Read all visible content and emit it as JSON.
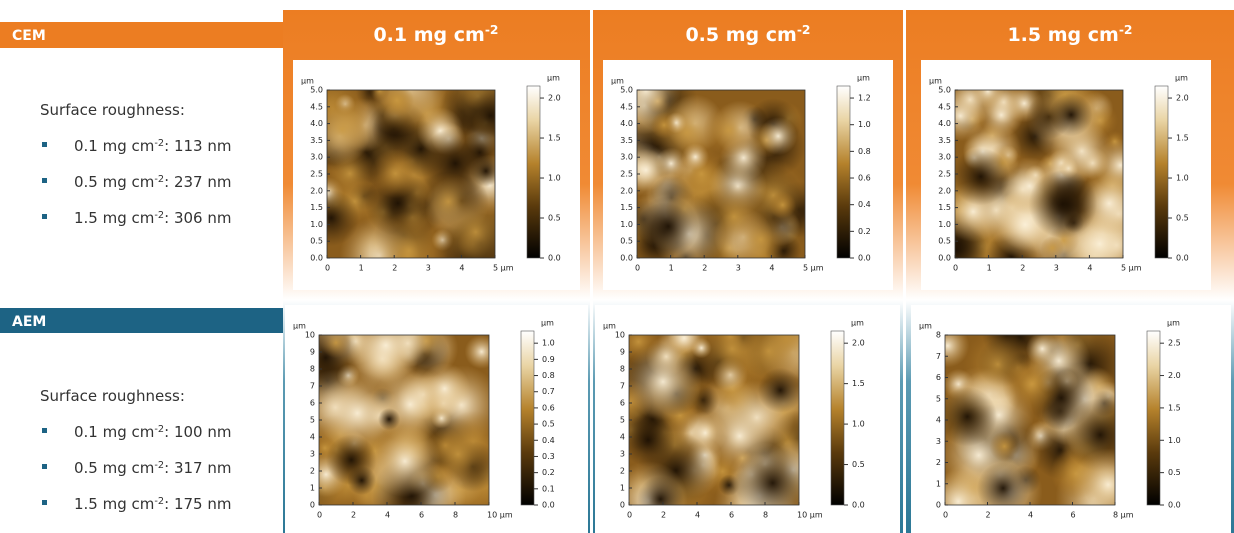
{
  "columns": [
    {
      "text": "0.1 mg cm",
      "sup": "-2"
    },
    {
      "text": "0.5 mg cm",
      "sup": "-2"
    },
    {
      "text": "1.5 mg cm",
      "sup": "-2"
    }
  ],
  "sections": [
    {
      "label": "CEM",
      "heading": "Surface roughness:",
      "items": [
        {
          "prefix": "0.1 mg cm",
          "sup": "-2",
          "suffix": ": 113 nm"
        },
        {
          "prefix": "0.5 mg cm",
          "sup": "-2",
          "suffix": ": 237 nm"
        },
        {
          "prefix": "1.5 mg cm",
          "sup": "-2",
          "suffix": ": 306 nm"
        }
      ]
    },
    {
      "label": "AEM",
      "heading": "Surface roughness:",
      "items": [
        {
          "prefix": "0.1 mg cm",
          "sup": "-2",
          "suffix": ": 100 nm"
        },
        {
          "prefix": "0.5 mg cm",
          "sup": "-2",
          "suffix": ": 317 nm"
        },
        {
          "prefix": "1.5 mg cm",
          "sup": "-2",
          "suffix": ": 175 nm"
        }
      ]
    }
  ],
  "panels": [
    [
      {
        "y_unit": "µm",
        "yticks": [
          "0.0",
          "0.5",
          "1.0",
          "1.5",
          "2.0",
          "2.5",
          "3.0",
          "3.5",
          "4.0",
          "4.5",
          "5.0"
        ],
        "xticks": [
          "0",
          "1",
          "2",
          "3",
          "4",
          "5 µm"
        ],
        "cbar_unit": "µm",
        "cbar_ticks": [
          "0.0",
          "0.5",
          "1.0",
          "1.5",
          "2.0"
        ]
      },
      {
        "y_unit": "µm",
        "yticks": [
          "0.0",
          "0.5",
          "1.0",
          "1.5",
          "2.0",
          "2.5",
          "3.0",
          "3.5",
          "4.0",
          "4.5",
          "5.0"
        ],
        "xticks": [
          "0",
          "1",
          "2",
          "3",
          "4",
          "5 µm"
        ],
        "cbar_unit": "µm",
        "cbar_ticks": [
          "0.0",
          "0.2",
          "0.4",
          "0.6",
          "0.8",
          "1.0",
          "1.2"
        ]
      },
      {
        "y_unit": "µm",
        "yticks": [
          "0.0",
          "0.5",
          "1.0",
          "1.5",
          "2.0",
          "2.5",
          "3.0",
          "3.5",
          "4.0",
          "4.5",
          "5.0"
        ],
        "xticks": [
          "0",
          "1",
          "2",
          "3",
          "4",
          "5 µm"
        ],
        "cbar_unit": "µm",
        "cbar_ticks": [
          "0.0",
          "0.5",
          "1.0",
          "1.5",
          "2.0"
        ]
      }
    ],
    [
      {
        "y_unit": "µm",
        "yticks": [
          "0",
          "1",
          "2",
          "3",
          "4",
          "5",
          "6",
          "7",
          "8",
          "9",
          "10"
        ],
        "xticks": [
          "0",
          "2",
          "4",
          "6",
          "8",
          "10 µm"
        ],
        "cbar_unit": "µm",
        "cbar_ticks": [
          "0.0",
          "0.1",
          "0.2",
          "0.3",
          "0.4",
          "0.5",
          "0.6",
          "0.7",
          "0.8",
          "0.9",
          "1.0"
        ]
      },
      {
        "y_unit": "µm",
        "yticks": [
          "0",
          "1",
          "2",
          "3",
          "4",
          "5",
          "6",
          "7",
          "8",
          "9",
          "10"
        ],
        "xticks": [
          "0",
          "2",
          "4",
          "6",
          "8",
          "10 µm"
        ],
        "cbar_unit": "µm",
        "cbar_ticks": [
          "0.0",
          "0.5",
          "1.0",
          "1.5",
          "2.0"
        ]
      },
      {
        "y_unit": "µm",
        "yticks": [
          "0",
          "1",
          "2",
          "3",
          "4",
          "5",
          "6",
          "7",
          "8"
        ],
        "xticks": [
          "0",
          "2",
          "4",
          "6",
          "8 µm"
        ],
        "cbar_unit": "µm",
        "cbar_ticks": [
          "0.0",
          "0.5",
          "1.0",
          "1.5",
          "2.0",
          "2.5"
        ]
      }
    ]
  ]
}
